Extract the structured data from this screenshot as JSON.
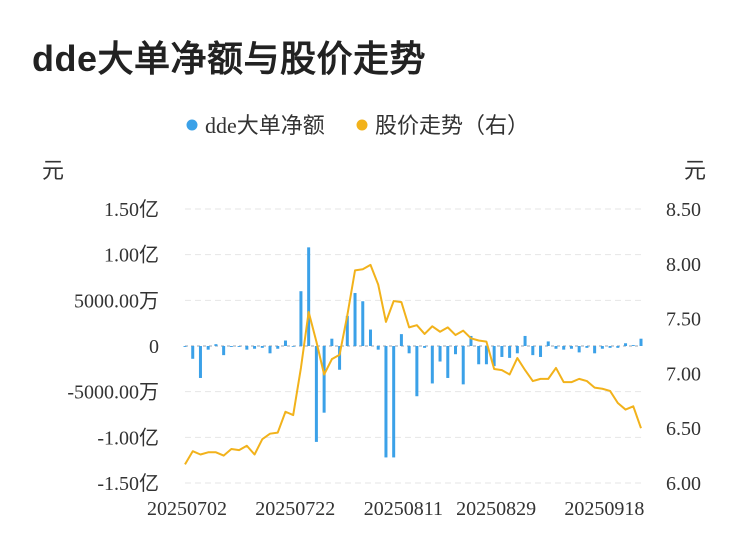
{
  "title": "dde大单净额与股价走势",
  "chart_data": {
    "type": "bar+line",
    "legend": {
      "placement": "top-center"
    },
    "left_axis": {
      "unit": "元",
      "ylim": [
        -150000000,
        150000000
      ],
      "tick_values": [
        150000000,
        100000000,
        50000000,
        0,
        -50000000,
        -100000000,
        -150000000
      ],
      "tick_labels": [
        "1.50亿",
        "1.00亿",
        "5000.00万",
        "0",
        "-5000.00万",
        "-1.00亿",
        "-1.50亿"
      ]
    },
    "right_axis": {
      "unit": "元",
      "ylim": [
        6.0,
        8.5
      ],
      "tick_values": [
        8.5,
        8.0,
        7.5,
        7.0,
        6.5,
        6.0
      ],
      "tick_labels": [
        "8.50",
        "8.00",
        "7.50",
        "7.00",
        "6.50",
        "6.00"
      ]
    },
    "x_tick_labels": [
      "20250702",
      "20250722",
      "20250811",
      "20250829",
      "20250918"
    ],
    "x_tick_index": [
      0,
      14,
      28,
      40,
      54
    ],
    "grid": "horizontal-dashed",
    "series": [
      {
        "name": "dde大单净额",
        "type": "bar",
        "axis": "left",
        "color": "#3ba1e8",
        "values": [
          -1000000,
          -14000000,
          -35000000,
          -4000000,
          2000000,
          -10000000,
          -1000000,
          -1000000,
          -4000000,
          -3000000,
          -2000000,
          -8000000,
          -3000000,
          6000000,
          0,
          60000000,
          108000000,
          -105000000,
          -73000000,
          8000000,
          -26000000,
          33000000,
          58000000,
          49000000,
          18000000,
          -4000000,
          -122000000,
          -122000000,
          13000000,
          -8000000,
          -55000000,
          -2000000,
          -41000000,
          -17000000,
          -35000000,
          -9000000,
          -42000000,
          11000000,
          -20000000,
          -20000000,
          -22000000,
          -12000000,
          -13000000,
          -8000000,
          11000000,
          -10000000,
          -12000000,
          5000000,
          -3000000,
          -4000000,
          -3000000,
          -7000000,
          -2000000,
          -8000000,
          -3000000,
          -2000000,
          -2000000,
          3000000,
          1000000,
          8000000
        ]
      },
      {
        "name": "股价走势（右）",
        "type": "line",
        "axis": "right",
        "color": "#f2b21b",
        "values": [
          6.17,
          6.29,
          6.26,
          6.28,
          6.28,
          6.25,
          6.31,
          6.3,
          6.34,
          6.26,
          6.4,
          6.45,
          6.46,
          6.65,
          6.62,
          7.05,
          7.56,
          7.29,
          6.99,
          7.13,
          7.17,
          7.53,
          7.94,
          7.95,
          7.99,
          7.81,
          7.47,
          7.66,
          7.65,
          7.42,
          7.44,
          7.36,
          7.43,
          7.38,
          7.42,
          7.35,
          7.39,
          7.32,
          7.3,
          7.29,
          7.04,
          7.03,
          6.99,
          7.14,
          7.03,
          6.93,
          6.95,
          6.95,
          7.05,
          6.92,
          6.92,
          6.95,
          6.93,
          6.87,
          6.86,
          6.84,
          6.73,
          6.67,
          6.7,
          6.5
        ]
      }
    ]
  }
}
